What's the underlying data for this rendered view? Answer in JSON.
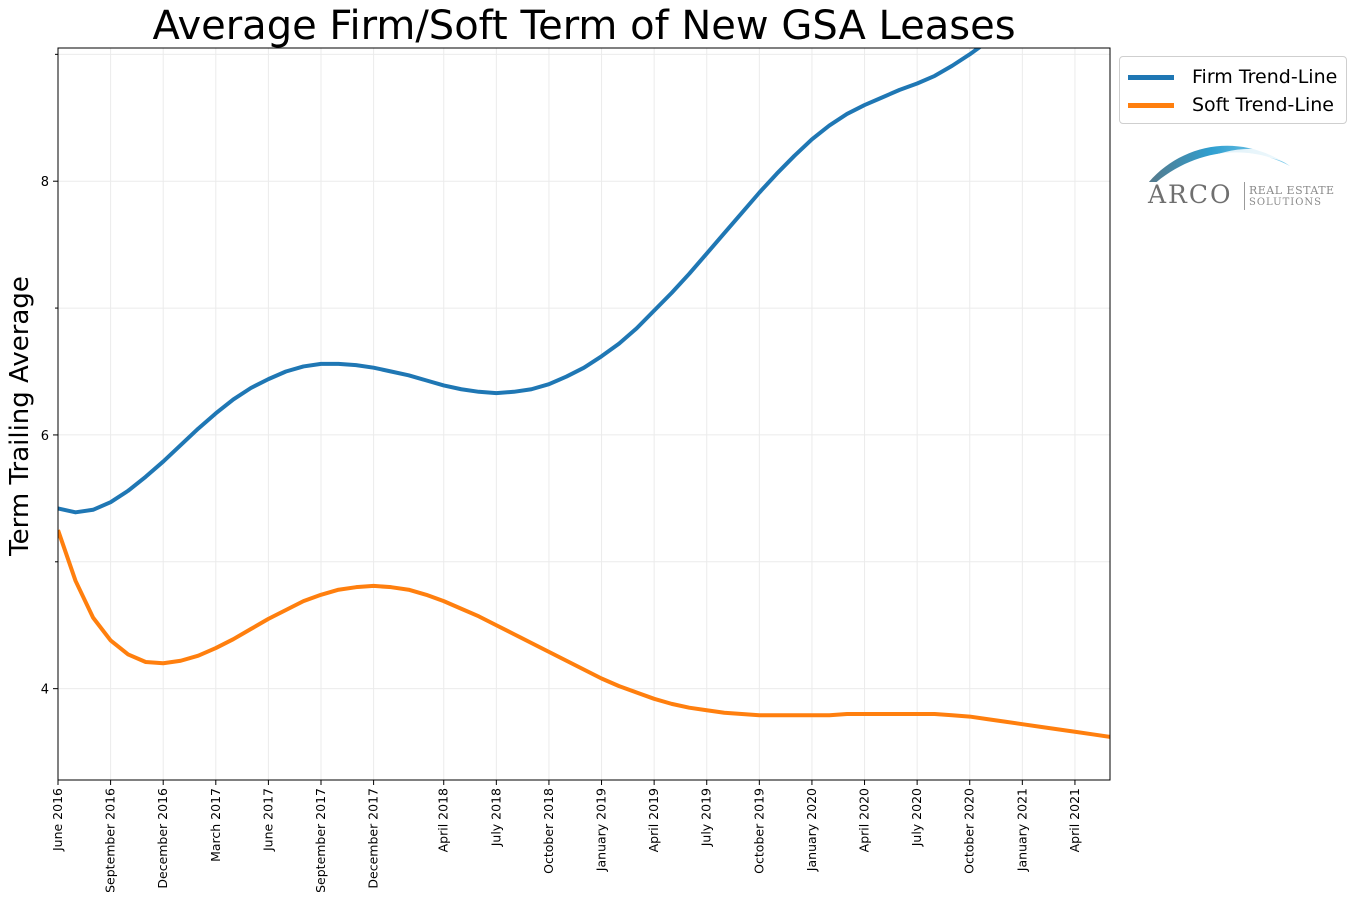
{
  "chart_data": {
    "type": "line",
    "title": "Average Firm/Soft Term of New GSA Leases",
    "xlabel": "",
    "ylabel": "Term Trailing Average",
    "ylim": [
      3.28,
      9.05
    ],
    "yticks": [
      4,
      6,
      8
    ],
    "grid": true,
    "legend_position": "outside-top-right",
    "x_labels": [
      "June 2016",
      "September 2016",
      "December 2016",
      "March 2017",
      "June 2017",
      "September 2017",
      "December 2017",
      "April 2018",
      "July 2018",
      "October 2018",
      "January 2019",
      "April 2019",
      "July 2019",
      "October 2019",
      "January 2020",
      "April 2020",
      "July 2020",
      "October 2020",
      "January 2021",
      "April 2021"
    ],
    "x": [
      "2016-06",
      "2016-07",
      "2016-08",
      "2016-09",
      "2016-10",
      "2016-11",
      "2016-12",
      "2017-01",
      "2017-02",
      "2017-03",
      "2017-04",
      "2017-05",
      "2017-06",
      "2017-07",
      "2017-08",
      "2017-09",
      "2017-10",
      "2017-11",
      "2017-12",
      "2018-01",
      "2018-02",
      "2018-03",
      "2018-04",
      "2018-05",
      "2018-06",
      "2018-07",
      "2018-08",
      "2018-09",
      "2018-10",
      "2018-11",
      "2018-12",
      "2019-01",
      "2019-02",
      "2019-03",
      "2019-04",
      "2019-05",
      "2019-06",
      "2019-07",
      "2019-08",
      "2019-09",
      "2019-10",
      "2019-11",
      "2019-12",
      "2020-01",
      "2020-02",
      "2020-03",
      "2020-04",
      "2020-05",
      "2020-06",
      "2020-07",
      "2020-08",
      "2020-09",
      "2020-10",
      "2020-11",
      "2020-12",
      "2021-01",
      "2021-02",
      "2021-03",
      "2021-04",
      "2021-05",
      "2021-06"
    ],
    "series": [
      {
        "name": "Firm Trend-Line",
        "color": "#1f77b4",
        "values": [
          5.42,
          5.39,
          5.41,
          5.47,
          5.56,
          5.67,
          5.79,
          5.92,
          6.05,
          6.17,
          6.28,
          6.37,
          6.44,
          6.5,
          6.54,
          6.56,
          6.56,
          6.55,
          6.53,
          6.5,
          6.47,
          6.43,
          6.39,
          6.36,
          6.34,
          6.33,
          6.34,
          6.36,
          6.4,
          6.46,
          6.53,
          6.62,
          6.72,
          6.84,
          6.98,
          7.12,
          7.27,
          7.43,
          7.59,
          7.75,
          7.91,
          8.06,
          8.2,
          8.33,
          8.44,
          8.53,
          8.6,
          8.66,
          8.72,
          8.77,
          8.83,
          8.91,
          9.0,
          9.1,
          9.21,
          9.33,
          9.46,
          9.6,
          9.75,
          9.91,
          10.08
        ]
      },
      {
        "name": "Soft Trend-Line",
        "color": "#ff7f0e",
        "values": [
          5.25,
          4.85,
          4.56,
          4.38,
          4.27,
          4.21,
          4.2,
          4.22,
          4.26,
          4.32,
          4.39,
          4.47,
          4.55,
          4.62,
          4.69,
          4.74,
          4.78,
          4.8,
          4.81,
          4.8,
          4.78,
          4.74,
          4.69,
          4.63,
          4.57,
          4.5,
          4.43,
          4.36,
          4.29,
          4.22,
          4.15,
          4.08,
          4.02,
          3.97,
          3.92,
          3.88,
          3.85,
          3.83,
          3.81,
          3.8,
          3.79,
          3.79,
          3.79,
          3.79,
          3.79,
          3.8,
          3.8,
          3.8,
          3.8,
          3.8,
          3.8,
          3.79,
          3.78,
          3.76,
          3.74,
          3.72,
          3.7,
          3.68,
          3.66,
          3.64,
          3.62
        ]
      }
    ]
  },
  "logo": {
    "name": "ARCO",
    "line1": "REAL ESTATE",
    "line2": "SOLUTIONS",
    "colors": [
      "#5f6f78",
      "#2f9fd0",
      "#8fd3ef"
    ]
  }
}
